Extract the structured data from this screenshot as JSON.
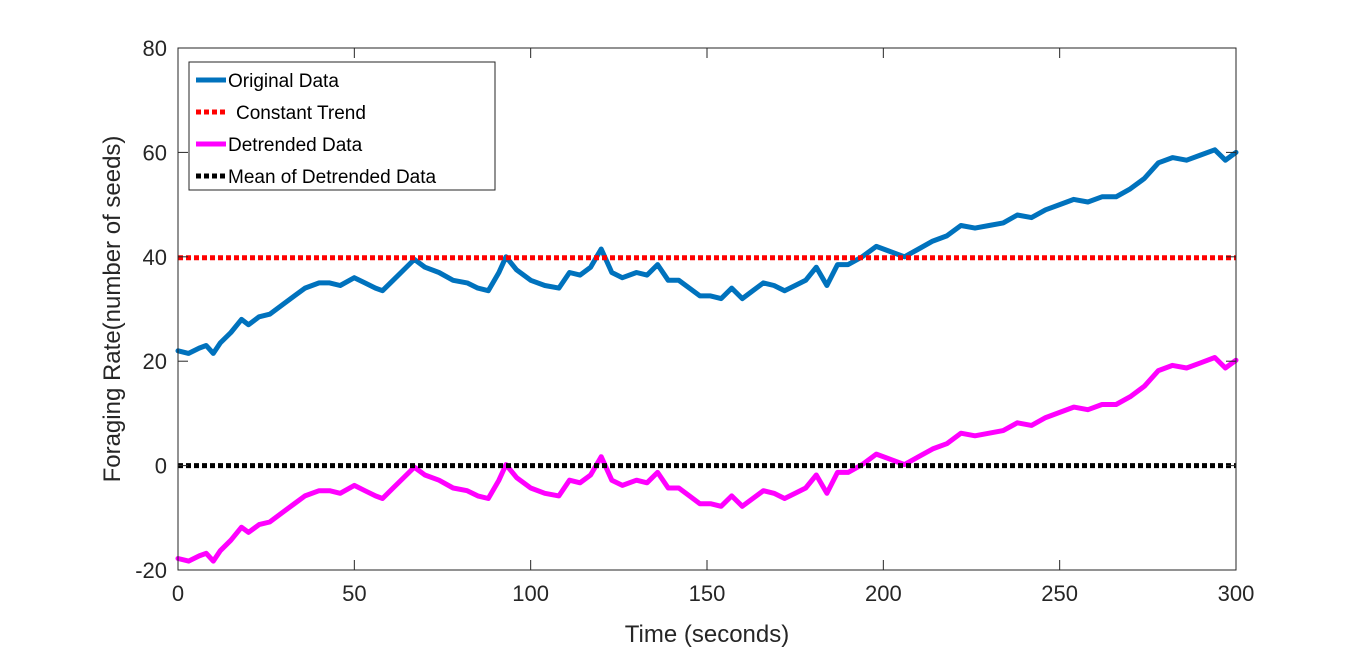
{
  "chart_data": {
    "type": "line",
    "title": "",
    "xlabel": "Time (seconds)",
    "ylabel": "Foraging Rate(number of seeds)",
    "xlim": [
      0,
      300
    ],
    "ylim": [
      -20,
      80
    ],
    "xticks": [
      0,
      50,
      100,
      150,
      200,
      250,
      300
    ],
    "yticks": [
      -20,
      0,
      20,
      40,
      60,
      80
    ],
    "xtick_labels": [
      "0",
      "50",
      "100",
      "150",
      "200",
      "250",
      "300"
    ],
    "ytick_labels": [
      "-20",
      "0",
      "20",
      "40",
      "60",
      "80"
    ],
    "grid": false,
    "legend_position": "top-left",
    "series": [
      {
        "name": "Original Data",
        "color": "#0072BD",
        "style": "solid",
        "x": [
          0,
          3,
          6,
          8,
          10,
          12,
          15,
          18,
          20,
          23,
          26,
          30,
          33,
          36,
          40,
          43,
          46,
          50,
          53,
          56,
          58,
          61,
          64,
          67,
          70,
          74,
          78,
          82,
          85,
          88,
          91,
          93,
          96,
          100,
          104,
          108,
          111,
          114,
          117,
          120,
          123,
          126,
          130,
          133,
          136,
          139,
          142,
          145,
          148,
          151,
          154,
          157,
          160,
          163,
          166,
          169,
          172,
          175,
          178,
          181,
          184,
          187,
          190,
          194,
          198,
          202,
          206,
          210,
          214,
          218,
          222,
          226,
          230,
          234,
          238,
          242,
          246,
          250,
          254,
          258,
          262,
          266,
          270,
          274,
          278,
          282,
          286,
          290,
          294,
          297,
          300
        ],
        "y": [
          22,
          21.5,
          22.5,
          23,
          21.5,
          23.5,
          25.5,
          28,
          27,
          28.5,
          29,
          31,
          32.5,
          34,
          35,
          35,
          34.5,
          36,
          35,
          34,
          33.5,
          35.5,
          37.5,
          39.5,
          38,
          37,
          35.5,
          35,
          34,
          33.5,
          37,
          40,
          37.5,
          35.5,
          34.5,
          34,
          37,
          36.5,
          38,
          41.5,
          37,
          36,
          37,
          36.5,
          38.5,
          35.5,
          35.5,
          34,
          32.5,
          32.5,
          32,
          34,
          32,
          33.5,
          35,
          34.5,
          33.5,
          34.5,
          35.5,
          38,
          34.5,
          38.5,
          38.5,
          40,
          42,
          41,
          40,
          41.5,
          43,
          44,
          46,
          45.5,
          46,
          46.5,
          48,
          47.5,
          49,
          50,
          51,
          50.5,
          51.5,
          51.5,
          53,
          55,
          58,
          59,
          58.5,
          59.5,
          60.5,
          58.5,
          60
        ]
      },
      {
        "name": "Constant Trend",
        "color": "#FF0000",
        "style": "dotted",
        "x": [
          0,
          300
        ],
        "y": [
          39.8,
          39.8
        ]
      },
      {
        "name": "Detrended Data",
        "color": "#FF00FF",
        "style": "solid",
        "x": [
          0,
          3,
          6,
          8,
          10,
          12,
          15,
          18,
          20,
          23,
          26,
          30,
          33,
          36,
          40,
          43,
          46,
          50,
          53,
          56,
          58,
          61,
          64,
          67,
          70,
          74,
          78,
          82,
          85,
          88,
          91,
          93,
          96,
          100,
          104,
          108,
          111,
          114,
          117,
          120,
          123,
          126,
          130,
          133,
          136,
          139,
          142,
          145,
          148,
          151,
          154,
          157,
          160,
          163,
          166,
          169,
          172,
          175,
          178,
          181,
          184,
          187,
          190,
          194,
          198,
          202,
          206,
          210,
          214,
          218,
          222,
          226,
          230,
          234,
          238,
          242,
          246,
          250,
          254,
          258,
          262,
          266,
          270,
          274,
          278,
          282,
          286,
          290,
          294,
          297,
          300
        ],
        "y": [
          -17.8,
          -18.3,
          -17.3,
          -16.8,
          -18.3,
          -16.3,
          -14.3,
          -11.8,
          -12.8,
          -11.3,
          -10.8,
          -8.8,
          -7.3,
          -5.8,
          -4.8,
          -4.8,
          -5.3,
          -3.8,
          -4.8,
          -5.8,
          -6.3,
          -4.3,
          -2.3,
          -0.3,
          -1.8,
          -2.8,
          -4.3,
          -4.8,
          -5.8,
          -6.3,
          -2.8,
          0.2,
          -2.3,
          -4.3,
          -5.3,
          -5.8,
          -2.8,
          -3.3,
          -1.8,
          1.7,
          -2.8,
          -3.8,
          -2.8,
          -3.3,
          -1.3,
          -4.3,
          -4.3,
          -5.8,
          -7.3,
          -7.3,
          -7.8,
          -5.8,
          -7.8,
          -6.3,
          -4.8,
          -5.3,
          -6.3,
          -5.3,
          -4.3,
          -1.8,
          -5.3,
          -1.3,
          -1.3,
          0.2,
          2.2,
          1.2,
          0.2,
          1.7,
          3.2,
          4.2,
          6.2,
          5.7,
          6.2,
          6.7,
          8.2,
          7.7,
          9.2,
          10.2,
          11.2,
          10.7,
          11.7,
          11.7,
          13.2,
          15.2,
          18.2,
          19.2,
          18.7,
          19.7,
          20.7,
          18.7,
          20.2
        ]
      },
      {
        "name": "Mean of Detrended Data",
        "color": "#000000",
        "style": "dotted",
        "x": [
          0,
          300
        ],
        "y": [
          0,
          0
        ]
      }
    ]
  }
}
